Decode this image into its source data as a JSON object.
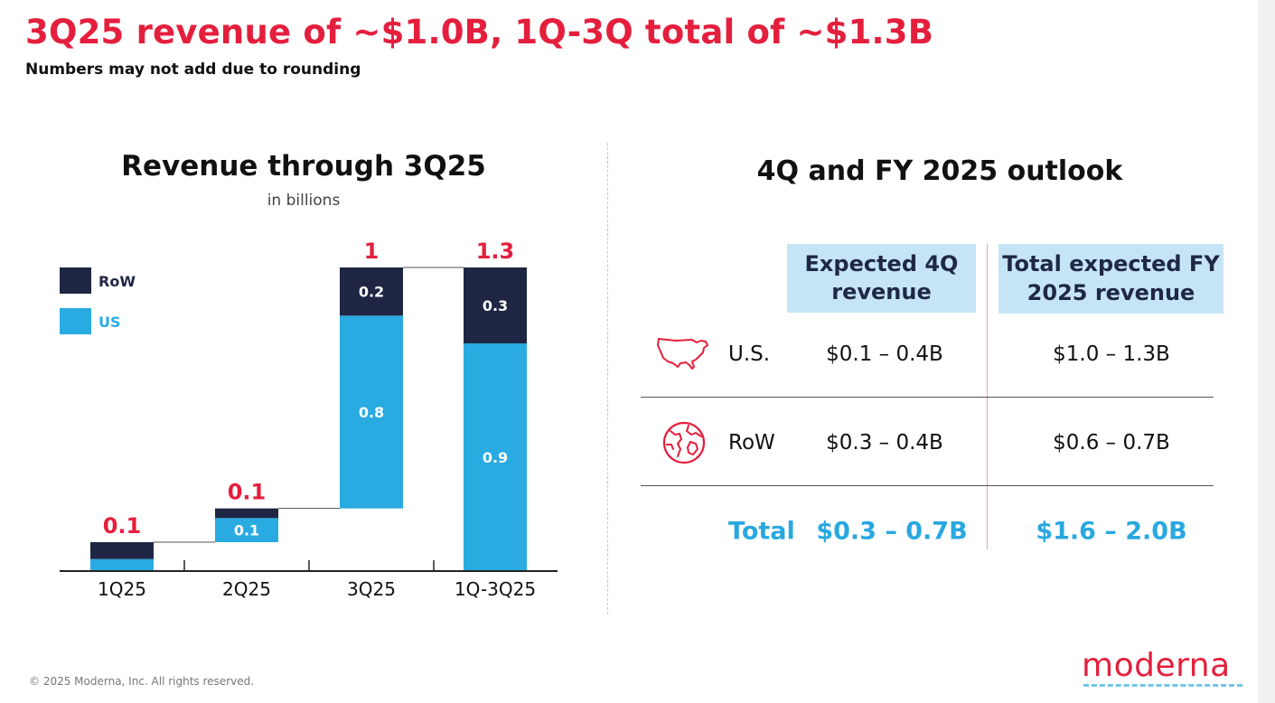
{
  "header": {
    "title": "3Q25 revenue of ~$1.0B, 1Q-3Q total of ~$1.3B",
    "subtitle": "Numbers may not add due to rounding"
  },
  "chart_data": {
    "type": "bar",
    "stacked": true,
    "waterfall": true,
    "title": "Revenue through 3Q25",
    "subtitle": "in billions",
    "categories": [
      "1Q25",
      "2Q25",
      "3Q25",
      "1Q-3Q25"
    ],
    "series": [
      {
        "name": "US",
        "color": "#29abe2",
        "values": [
          0.05,
          0.1,
          0.8,
          0.9
        ],
        "labels": [
          "",
          "0.1",
          "0.8",
          "0.9"
        ]
      },
      {
        "name": "RoW",
        "color": "#1f2644",
        "values": [
          0.07,
          0.04,
          0.2,
          0.3
        ],
        "labels": [
          "",
          "",
          "0.2",
          "0.3"
        ]
      }
    ],
    "totals": [
      0.1,
      0.1,
      1.0,
      1.3
    ],
    "total_values": [
      0.12,
      0.14,
      1.0,
      1.26
    ],
    "ylim": [
      0,
      1.26
    ],
    "legend": [
      {
        "name": "RoW",
        "color": "#1f2644"
      },
      {
        "name": "US",
        "color": "#29abe2"
      }
    ],
    "legend_position": "top-left",
    "total_color": "#e41f3d",
    "grid": false
  },
  "outlook": {
    "title": "4Q and FY 2025 outlook",
    "columns": [
      "Expected 4Q revenue",
      "Total expected FY 2025 revenue"
    ],
    "rows": [
      {
        "icon": "usa-map-icon",
        "label": "U.S.",
        "q4": "$0.1 – 0.4B",
        "fy": "$1.0 – 1.3B"
      },
      {
        "icon": "globe-icon",
        "label": "RoW",
        "q4": "$0.3 – 0.4B",
        "fy": "$0.6 – 0.7B"
      }
    ],
    "total": {
      "label": "Total",
      "q4": "$0.3 – 0.7B",
      "fy": "$1.6 – 2.0B"
    },
    "header_bg": "#c5e5f6",
    "total_color": "#29a8e0"
  },
  "footer": {
    "copyright": "© 2025 Moderna, Inc. All rights reserved.",
    "logo": "moderna"
  }
}
